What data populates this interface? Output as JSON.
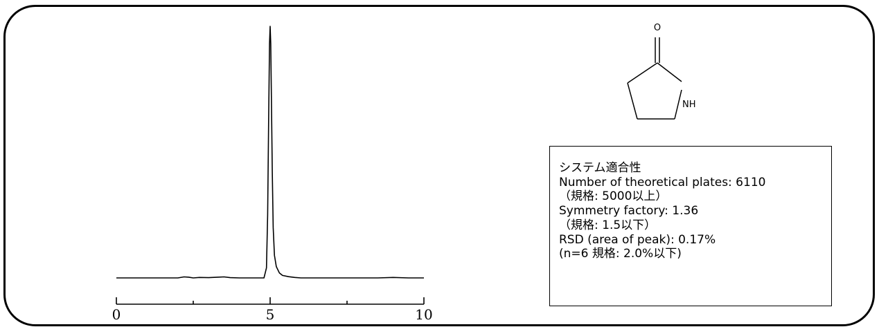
{
  "chart_data": {
    "type": "line",
    "title": "",
    "xlabel": "",
    "ylabel": "",
    "xlim": [
      0,
      10
    ],
    "x_ticks": [
      0,
      5,
      10
    ],
    "x_minor_ticks": [
      2.5,
      7.5
    ],
    "grid": false,
    "series": [
      {
        "color": "#000000",
        "x": [
          0,
          0.5,
          1,
          1.5,
          2,
          2.2,
          2.35,
          2.5,
          2.7,
          3,
          3.3,
          3.5,
          3.7,
          4,
          4.3,
          4.6,
          4.8,
          4.88,
          4.92,
          4.95,
          4.98,
          5.0,
          5.02,
          5.04,
          5.07,
          5.1,
          5.14,
          5.2,
          5.3,
          5.4,
          5.6,
          5.8,
          6,
          6.5,
          7,
          7.5,
          8,
          8.5,
          9,
          9.5,
          10
        ],
        "y": [
          0.0,
          0.0,
          0.0,
          0.0,
          0.0,
          0.004,
          0.003,
          0.0,
          0.002,
          0.001,
          0.003,
          0.004,
          0.001,
          0.0,
          0.0,
          0.0,
          0.0,
          0.04,
          0.25,
          0.62,
          0.93,
          1.0,
          0.93,
          0.72,
          0.42,
          0.2,
          0.09,
          0.045,
          0.02,
          0.01,
          0.005,
          0.002,
          0.0,
          0.0,
          0.0,
          0.0,
          0.0,
          0.0,
          0.002,
          0.0,
          0.0
        ]
      }
    ]
  },
  "molecule": {
    "name": "pyrrolidone-structure",
    "atom_labels": {
      "oxygen": "O",
      "nitrogen": "NH"
    }
  },
  "info": {
    "title": "システム適合性",
    "line1": "Number of theoretical plates: 6110",
    "line2": "（規格: 5000以上）",
    "line3": "Symmetry factory: 1.36",
    "line4": "（規格: 1.5以下）",
    "line5": "RSD (area of peak): 0.17%",
    "line6": "(n=6 規格: 2.0%以下)"
  }
}
